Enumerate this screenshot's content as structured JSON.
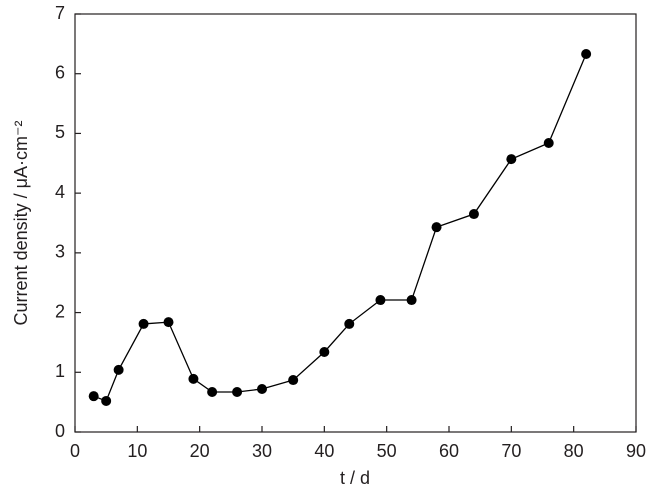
{
  "chart_data": {
    "type": "line",
    "xlabel": "t / d",
    "ylabel": "Current density / μA·cm⁻²",
    "x": [
      3,
      5,
      7,
      11,
      15,
      19,
      22,
      26,
      30,
      35,
      40,
      44,
      49,
      54,
      58,
      64,
      70,
      76,
      82
    ],
    "values": [
      0.6,
      0.52,
      1.04,
      1.81,
      1.84,
      0.89,
      0.67,
      0.67,
      0.72,
      0.87,
      1.34,
      1.81,
      2.21,
      2.21,
      3.43,
      3.65,
      4.57,
      4.84,
      6.33
    ],
    "color": "#000000",
    "xlim": [
      0,
      90
    ],
    "xticks": [
      0,
      10,
      20,
      30,
      40,
      50,
      60,
      70,
      80,
      90
    ],
    "ylim": [
      0,
      7
    ],
    "yticks": [
      0,
      1,
      2,
      3,
      4,
      5,
      6,
      7
    ]
  }
}
